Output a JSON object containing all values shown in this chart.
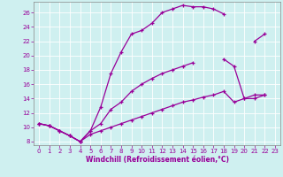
{
  "bg_color": "#cff0f0",
  "line_color": "#990099",
  "xlim": [
    -0.5,
    23.5
  ],
  "ylim": [
    7.5,
    27.5
  ],
  "xticks": [
    0,
    1,
    2,
    3,
    4,
    5,
    6,
    7,
    8,
    9,
    10,
    11,
    12,
    13,
    14,
    15,
    16,
    17,
    18,
    19,
    20,
    21,
    22,
    23
  ],
  "yticks": [
    8,
    10,
    12,
    14,
    16,
    18,
    20,
    22,
    24,
    26
  ],
  "xlabel": "Windchill (Refroidissement éolien,°C)",
  "line1_x": [
    0,
    1,
    2,
    3,
    4,
    5,
    6,
    7,
    8,
    9,
    10,
    11,
    12,
    13,
    14,
    15,
    16,
    17,
    18,
    19,
    20,
    21,
    22
  ],
  "line1_y": [
    10.5,
    10.2,
    9.5,
    8.8,
    8.0,
    9.5,
    12.8,
    17.5,
    20.5,
    23.0,
    23.5,
    24.5,
    26.0,
    26.5,
    27.0,
    26.8,
    26.8,
    26.5,
    25.8,
    null,
    null,
    22.0,
    23.0
  ],
  "line2_x": [
    0,
    1,
    2,
    3,
    4,
    5,
    6,
    7,
    8,
    9,
    10,
    11,
    12,
    13,
    14,
    15,
    16,
    17,
    18,
    19,
    20,
    21,
    22
  ],
  "line2_y": [
    10.5,
    10.2,
    9.5,
    8.8,
    8.0,
    9.5,
    10.5,
    12.5,
    13.5,
    15.0,
    16.0,
    16.8,
    17.5,
    18.0,
    18.5,
    19.0,
    null,
    null,
    19.5,
    18.5,
    14.0,
    14.0,
    14.5
  ],
  "line3_x": [
    0,
    1,
    2,
    3,
    4,
    5,
    6,
    7,
    8,
    9,
    10,
    11,
    12,
    13,
    14,
    15,
    16,
    17,
    18,
    19,
    20,
    21,
    22
  ],
  "line3_y": [
    10.5,
    10.2,
    9.5,
    8.8,
    8.0,
    9.0,
    9.5,
    10.0,
    10.5,
    11.0,
    11.5,
    12.0,
    12.5,
    13.0,
    13.5,
    13.8,
    14.2,
    14.5,
    15.0,
    13.5,
    14.0,
    14.5,
    14.5
  ]
}
